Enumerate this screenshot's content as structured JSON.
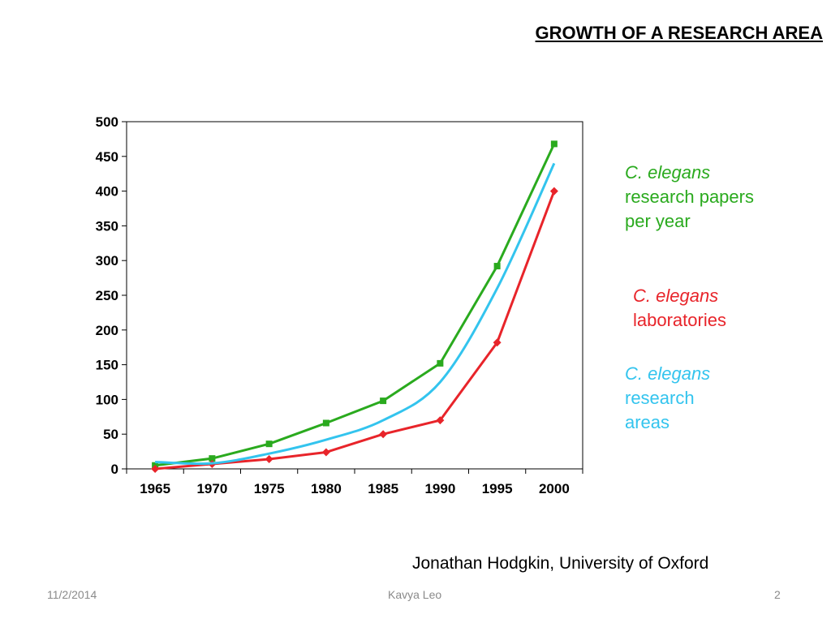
{
  "slide": {
    "title": "GROWTH OF A RESEARCH AREA",
    "credit": "Jonathan Hodgkin, University of Oxford",
    "footer_date": "11/2/2014",
    "footer_author": "Kavya Leo",
    "footer_page": "2"
  },
  "legend": {
    "papers": {
      "line1": "C. elegans",
      "line2": "research papers",
      "line3": "per year",
      "color": "#2aaa1e"
    },
    "labs": {
      "line1": "C. elegans",
      "line2": "laboratories",
      "color": "#e8242a"
    },
    "areas": {
      "line1": "C. elegans",
      "line2": "research",
      "line3": "areas",
      "color": "#33c4ee"
    }
  },
  "chart_data": {
    "type": "line",
    "x": [
      1965,
      1970,
      1975,
      1980,
      1985,
      1990,
      1995,
      2000
    ],
    "x_tick_labels": [
      "1965",
      "1970",
      "1975",
      "1980",
      "1985",
      "1990",
      "1995",
      "2000"
    ],
    "y_ticks": [
      0,
      50,
      100,
      150,
      200,
      250,
      300,
      350,
      400,
      450,
      500
    ],
    "ylim": [
      0,
      500
    ],
    "grid": false,
    "series": [
      {
        "key": "papers",
        "color": "#2aaa1e",
        "marker": "square",
        "smooth": false,
        "values": [
          5,
          15,
          36,
          66,
          98,
          152,
          292,
          468
        ]
      },
      {
        "key": "labs",
        "color": "#e8242a",
        "marker": "diamond",
        "smooth": false,
        "values": [
          0,
          7,
          14,
          24,
          50,
          70,
          182,
          400
        ]
      },
      {
        "key": "areas",
        "color": "#33c4ee",
        "marker": "none",
        "smooth": true,
        "values": [
          10,
          8,
          22,
          42,
          70,
          125,
          260,
          440
        ]
      }
    ]
  }
}
